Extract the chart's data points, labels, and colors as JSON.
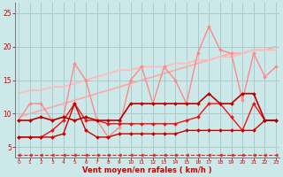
{
  "bg_color": "#cce8e8",
  "grid_color": "#aacccc",
  "xlabel": "Vent moyen/en rafales ( km/h )",
  "xlabel_color": "#cc0000",
  "tick_color": "#cc0000",
  "x_ticks": [
    0,
    1,
    2,
    3,
    4,
    5,
    6,
    7,
    8,
    9,
    10,
    11,
    12,
    13,
    14,
    15,
    16,
    17,
    18,
    19,
    20,
    21,
    22,
    23
  ],
  "ylim": [
    3.5,
    26.5
  ],
  "xlim": [
    -0.3,
    23.3
  ],
  "yticks": [
    5,
    10,
    15,
    20,
    25
  ],
  "lines": [
    {
      "x": [
        0,
        1,
        2,
        3,
        4,
        5,
        6,
        7,
        8,
        9,
        10,
        11,
        12,
        13,
        14,
        15,
        16,
        17,
        18,
        19,
        20,
        21,
        22,
        23
      ],
      "y": [
        3.8,
        3.8,
        3.8,
        3.8,
        3.8,
        3.8,
        3.8,
        3.8,
        3.8,
        3.8,
        3.8,
        3.8,
        3.8,
        3.8,
        3.8,
        3.8,
        3.8,
        3.8,
        3.8,
        3.8,
        3.8,
        3.8,
        3.8,
        3.8
      ],
      "color": "#dd2222",
      "lw": 0.8,
      "marker": "<",
      "ms": 2.5,
      "zorder": 7,
      "linestyle": "--"
    },
    {
      "x": [
        0,
        1,
        2,
        3,
        4,
        5,
        6,
        7,
        8,
        9,
        10,
        11,
        12,
        13,
        14,
        15,
        16,
        17,
        18,
        19,
        20,
        21,
        22,
        23
      ],
      "y": [
        9.5,
        10.0,
        10.5,
        11.0,
        11.5,
        12.0,
        12.5,
        13.0,
        13.5,
        14.0,
        14.5,
        15.0,
        15.5,
        16.0,
        16.5,
        17.0,
        17.5,
        18.0,
        18.5,
        19.0,
        19.0,
        19.5,
        19.5,
        20.0
      ],
      "color": "#ffaaaa",
      "lw": 1.3,
      "marker": null,
      "ms": 0,
      "zorder": 1,
      "linestyle": "-"
    },
    {
      "x": [
        0,
        1,
        2,
        3,
        4,
        5,
        6,
        7,
        8,
        9,
        10,
        11,
        12,
        13,
        14,
        15,
        16,
        17,
        18,
        19,
        20,
        21,
        22,
        23
      ],
      "y": [
        13.0,
        13.5,
        13.5,
        14.0,
        14.0,
        14.5,
        15.0,
        15.5,
        16.0,
        16.5,
        16.5,
        17.0,
        17.0,
        17.0,
        17.5,
        17.5,
        18.0,
        18.0,
        18.5,
        18.5,
        19.0,
        19.5,
        19.5,
        19.5
      ],
      "color": "#ffbbbb",
      "lw": 1.3,
      "marker": null,
      "ms": 0,
      "zorder": 2,
      "linestyle": "-"
    },
    {
      "x": [
        0,
        1,
        2,
        3,
        4,
        5,
        6,
        7,
        8,
        9,
        10,
        11,
        12,
        13,
        14,
        15,
        16,
        17,
        18,
        19,
        20,
        21,
        22,
        23
      ],
      "y": [
        9.0,
        11.5,
        11.5,
        9.0,
        9.5,
        17.5,
        15.0,
        9.0,
        6.5,
        8.0,
        15.0,
        17.0,
        11.5,
        17.0,
        15.0,
        11.5,
        19.0,
        23.0,
        19.5,
        19.0,
        12.0,
        19.0,
        15.5,
        17.0
      ],
      "color": "#ff8888",
      "lw": 1.0,
      "marker": "D",
      "ms": 2.0,
      "zorder": 3,
      "linestyle": "-"
    },
    {
      "x": [
        0,
        1,
        2,
        3,
        4,
        5,
        6,
        7,
        8,
        9,
        10,
        11,
        12,
        13,
        14,
        15,
        16,
        17,
        18,
        19,
        20,
        21,
        22,
        23
      ],
      "y": [
        6.5,
        6.5,
        6.5,
        6.5,
        7.0,
        11.5,
        7.5,
        6.5,
        6.5,
        7.0,
        7.0,
        7.0,
        7.0,
        7.0,
        7.0,
        7.5,
        7.5,
        7.5,
        7.5,
        7.5,
        7.5,
        7.5,
        9.0,
        9.0
      ],
      "color": "#cc0000",
      "lw": 1.0,
      "marker": "D",
      "ms": 2.0,
      "zorder": 5,
      "linestyle": "-"
    },
    {
      "x": [
        0,
        1,
        2,
        3,
        4,
        5,
        6,
        7,
        8,
        9,
        10,
        11,
        12,
        13,
        14,
        15,
        16,
        17,
        18,
        19,
        20,
        21,
        22,
        23
      ],
      "y": [
        6.5,
        6.5,
        6.5,
        7.5,
        9.0,
        11.5,
        9.0,
        9.0,
        8.5,
        8.5,
        8.5,
        8.5,
        8.5,
        8.5,
        8.5,
        9.0,
        9.5,
        11.5,
        11.5,
        9.5,
        7.5,
        11.5,
        9.0,
        9.0
      ],
      "color": "#ee1111",
      "lw": 1.0,
      "marker": "D",
      "ms": 2.0,
      "zorder": 4,
      "linestyle": "-"
    },
    {
      "x": [
        0,
        1,
        2,
        3,
        4,
        5,
        6,
        7,
        8,
        9,
        10,
        11,
        12,
        13,
        14,
        15,
        16,
        17,
        18,
        19,
        20,
        21,
        22,
        23
      ],
      "y": [
        9.0,
        9.0,
        9.5,
        9.0,
        9.5,
        9.0,
        9.5,
        9.0,
        9.0,
        9.0,
        11.5,
        11.5,
        11.5,
        11.5,
        11.5,
        11.5,
        11.5,
        13.0,
        11.5,
        11.5,
        13.0,
        13.0,
        9.0,
        9.0
      ],
      "color": "#bb0000",
      "lw": 1.2,
      "marker": "D",
      "ms": 2.0,
      "zorder": 6,
      "linestyle": "-"
    }
  ]
}
